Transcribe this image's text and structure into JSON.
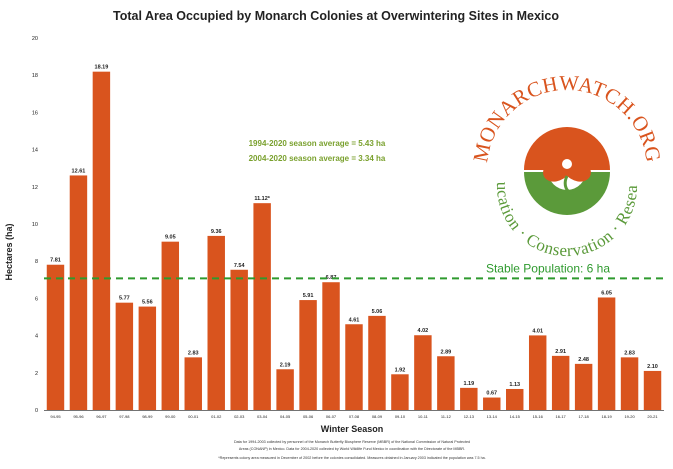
{
  "chart_data": {
    "type": "bar",
    "title": "Total Area Occupied by Monarch Colonies at Overwintering Sites in Mexico",
    "xlabel": "Winter Season",
    "ylabel": "Hectares (ha)",
    "ylim": [
      0,
      20
    ],
    "yticks": [
      0,
      2,
      4,
      6,
      8,
      10,
      12,
      14,
      16,
      18,
      20
    ],
    "grid": false,
    "bar_color": "#d9541e",
    "categories": [
      "94-95",
      "95-96",
      "96-97",
      "97-98",
      "98-99",
      "99-00",
      "00-01",
      "01-02",
      "02-03",
      "03-04",
      "04-05",
      "05-06",
      "06-07",
      "07-08",
      "08-09",
      "09-10",
      "10-11",
      "11-12",
      "12-13",
      "13-14",
      "14-15",
      "15-16",
      "16-17",
      "17-18",
      "18-19",
      "19-20",
      "20-21"
    ],
    "values": [
      7.81,
      12.61,
      18.19,
      5.77,
      5.56,
      9.05,
      2.83,
      9.36,
      7.54,
      11.12,
      2.19,
      5.91,
      6.87,
      4.61,
      5.06,
      1.92,
      4.02,
      2.89,
      1.19,
      0.67,
      1.13,
      4.01,
      2.91,
      2.48,
      6.05,
      2.83,
      2.1
    ],
    "value_labels": [
      "7.81",
      "12.61",
      "18.19",
      "5.77",
      "5.56",
      "9.05",
      "2.83",
      "9.36",
      "7.54",
      "11.12*",
      "2.19",
      "5.91",
      "6.87",
      "4.61",
      "5.06",
      "1.92",
      "4.02",
      "2.89",
      "1.19",
      "0.67",
      "1.13",
      "4.01",
      "2.91",
      "2.48",
      "6.05",
      "2.83",
      "2.10"
    ],
    "annotations": {
      "average_1": "1994-2020 season average = 5.43 ha",
      "average_2": "2004-2020 season average = 3.34 ha",
      "reference_line": {
        "label": "Stable Population: 6 ha",
        "value": 6,
        "color": "#2e9a2e"
      }
    },
    "source_note_1": "Data for 1994-2003 collected by personnel of the Monarch Butterfly Biosphere Reserve (MBBR) of the National Commission of Natural Protected",
    "source_note_2": "Areas (CONANP) in Mexico. Data for 2004-2020 collected by World Wildlife Fund Mexico in coordination with the Directorate of the MBBR.",
    "footnote": "*Represents colony area measured in December of 2002 before the colonies consolidated. Measures obtained in January 2003 indicated the population was 7.5 ha."
  },
  "logo": {
    "top_text": "MONARCHWATCH.ORG",
    "bottom_text": "Education · Conservation · Research",
    "orange": "#d9541e",
    "green": "#5b9a3a"
  }
}
